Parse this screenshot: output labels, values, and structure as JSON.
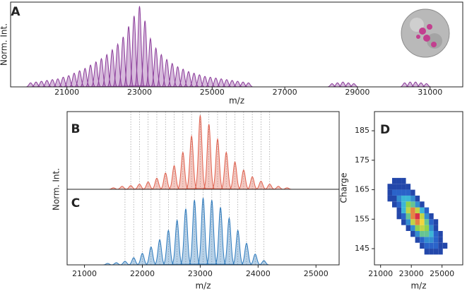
{
  "chart_data": [
    {
      "type": "spectrum",
      "panel": "A",
      "xlabel": "m/z",
      "ylabel": "Norm. Int.",
      "color": "#8b3d9a",
      "x": [
        20000,
        20150,
        20300,
        20450,
        20600,
        20750,
        20900,
        21050,
        21200,
        21350,
        21500,
        21650,
        21800,
        21950,
        22100,
        22250,
        22400,
        22550,
        22700,
        22850,
        23000,
        23150,
        23300,
        23450,
        23600,
        23750,
        23900,
        24050,
        24200,
        24350,
        24500,
        24650,
        24800,
        24950,
        25100,
        25250,
        25400,
        25550,
        25700,
        25850,
        26000,
        28300,
        28450,
        28600,
        28750,
        28900,
        30300,
        30450,
        30600,
        30750,
        30900
      ],
      "values": [
        0.05,
        0.06,
        0.07,
        0.08,
        0.09,
        0.1,
        0.12,
        0.14,
        0.17,
        0.2,
        0.23,
        0.27,
        0.31,
        0.35,
        0.4,
        0.46,
        0.53,
        0.62,
        0.75,
        0.88,
        1.0,
        0.82,
        0.6,
        0.48,
        0.4,
        0.34,
        0.29,
        0.25,
        0.22,
        0.19,
        0.17,
        0.15,
        0.13,
        0.12,
        0.11,
        0.1,
        0.09,
        0.08,
        0.07,
        0.06,
        0.05,
        0.04,
        0.05,
        0.06,
        0.05,
        0.04,
        0.05,
        0.06,
        0.06,
        0.05,
        0.04
      ],
      "xlim": [
        19450,
        31900
      ],
      "xticks": [
        21000,
        23000,
        25000,
        27000,
        29000,
        31000
      ],
      "ylim": [
        0,
        1.05
      ]
    },
    {
      "type": "spectrum",
      "panel": "B",
      "ylabel": "Norm. Int.",
      "color": "#e0614e",
      "guides": true,
      "x": [
        21500,
        21650,
        21800,
        21950,
        22100,
        22250,
        22400,
        22550,
        22700,
        22850,
        23000,
        23150,
        23300,
        23450,
        23600,
        23750,
        23900,
        24050,
        24200,
        24350,
        24500
      ],
      "values": [
        0.02,
        0.04,
        0.05,
        0.07,
        0.1,
        0.15,
        0.22,
        0.32,
        0.5,
        0.72,
        1.0,
        0.88,
        0.68,
        0.5,
        0.37,
        0.26,
        0.17,
        0.11,
        0.07,
        0.04,
        0.02
      ],
      "xlim": [
        20700,
        25400
      ],
      "ylim": [
        0,
        1.05
      ]
    },
    {
      "type": "spectrum",
      "panel": "C",
      "xlabel": "m/z",
      "color": "#2f7bbd",
      "guides": true,
      "x": [
        21400,
        21550,
        21700,
        21850,
        22000,
        22150,
        22300,
        22450,
        22600,
        22750,
        22900,
        23050,
        23200,
        23350,
        23500,
        23650,
        23800,
        23950,
        24100
      ],
      "values": [
        0.02,
        0.03,
        0.05,
        0.1,
        0.16,
        0.25,
        0.35,
        0.48,
        0.62,
        0.78,
        0.9,
        0.93,
        0.9,
        0.8,
        0.65,
        0.48,
        0.3,
        0.15,
        0.06
      ],
      "xlim": [
        20700,
        25400
      ],
      "xticks": [
        21000,
        22000,
        23000,
        24000,
        25000
      ],
      "ylim": [
        0,
        1.05
      ]
    },
    {
      "type": "heatmap",
      "panel": "D",
      "xlabel": "m/z",
      "ylabel": "Charge",
      "x": [
        21600,
        21900,
        22200,
        22500,
        22800,
        23100,
        23400,
        23700,
        24000,
        24300,
        24600,
        24900,
        25200
      ],
      "y": [
        144,
        146,
        148,
        150,
        152,
        154,
        156,
        158,
        160,
        162,
        164,
        166,
        168
      ],
      "values": [
        [
          null,
          null,
          null,
          null,
          null,
          null,
          null,
          null,
          1,
          1,
          1,
          1,
          null
        ],
        [
          null,
          null,
          null,
          null,
          null,
          null,
          null,
          1,
          2,
          2,
          2,
          1,
          1
        ],
        [
          null,
          null,
          null,
          null,
          null,
          null,
          1,
          2,
          3,
          3,
          2,
          1,
          null
        ],
        [
          null,
          null,
          null,
          null,
          null,
          1,
          3,
          5,
          5,
          4,
          2,
          1,
          null
        ],
        [
          null,
          null,
          null,
          null,
          1,
          3,
          6,
          7,
          6,
          3,
          1,
          null,
          null
        ],
        [
          null,
          null,
          null,
          1,
          3,
          7,
          9,
          8,
          5,
          2,
          1,
          null,
          null
        ],
        [
          null,
          null,
          1,
          2,
          5,
          9,
          10,
          7,
          3,
          1,
          null,
          null,
          null
        ],
        [
          null,
          null,
          1,
          4,
          7,
          9,
          7,
          4,
          2,
          null,
          null,
          null,
          null
        ],
        [
          null,
          1,
          2,
          4,
          6,
          5,
          3,
          1,
          null,
          null,
          null,
          null,
          null
        ],
        [
          1,
          1,
          3,
          4,
          4,
          3,
          1,
          null,
          null,
          null,
          null,
          null,
          null
        ],
        [
          1,
          2,
          2,
          2,
          2,
          1,
          null,
          null,
          null,
          null,
          null,
          null,
          null
        ],
        [
          1,
          1,
          1,
          1,
          1,
          null,
          null,
          null,
          null,
          null,
          null,
          null,
          null
        ],
        [
          null,
          1,
          1,
          1,
          null,
          null,
          null,
          null,
          null,
          null,
          null,
          null,
          null
        ]
      ],
      "xlim": [
        20600,
        26350
      ],
      "xticks": [
        21000,
        23000,
        25000
      ],
      "ylim": [
        139.5,
        191.5
      ],
      "yticks": [
        145,
        155,
        165,
        175,
        185
      ],
      "colormap": [
        "#1b2a8a",
        "#2a63c9",
        "#3cb6d6",
        "#8fd14f",
        "#f2d53c",
        "#d8304a"
      ]
    }
  ]
}
